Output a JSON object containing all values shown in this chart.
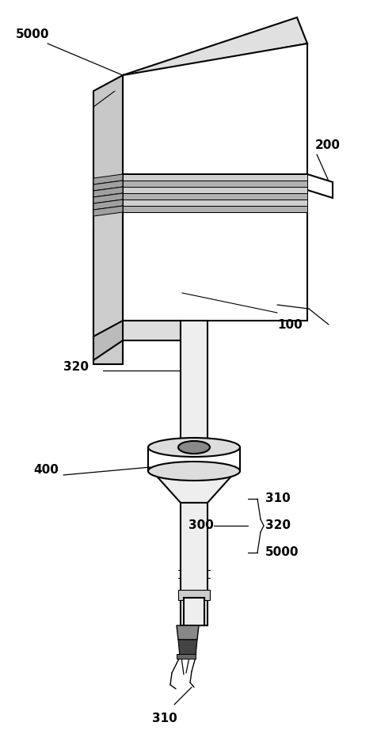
{
  "bg_color": "#ffffff",
  "fig_width": 4.77,
  "fig_height": 9.41,
  "dpi": 100,
  "lw_main": 1.5,
  "lw_thin": 0.8,
  "gray_light": "#cccccc",
  "gray_mid": "#aaaaaa",
  "gray_dark": "#555555",
  "white": "#ffffff",
  "black": "#000000"
}
